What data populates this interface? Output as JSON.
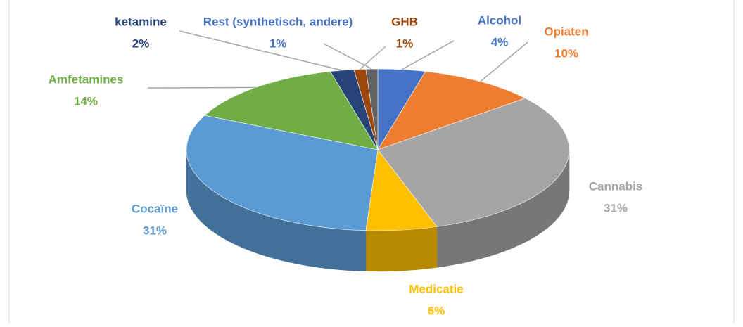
{
  "chart_data": {
    "type": "pie",
    "categories": [
      "Alcohol",
      "Opiaten",
      "Cannabis",
      "Medicatie",
      "Cocaïne",
      "Amfetamines",
      "ketamine",
      "GHB",
      "Rest (synthetisch, andere)"
    ],
    "values": [
      4,
      10,
      31,
      6,
      31,
      14,
      2,
      1,
      1
    ],
    "value_labels": [
      "4%",
      "10%",
      "31%",
      "6%",
      "31%",
      "14%",
      "2%",
      "1%",
      "1%"
    ],
    "colors": [
      "#4472c4",
      "#ed7d31",
      "#a5a5a5",
      "#ffc000",
      "#5b9bd5",
      "#70ad47",
      "#264478",
      "#9e480e",
      "#636363"
    ],
    "label_colors": [
      "#4472c4",
      "#ed7d31",
      "#a5a5a5",
      "#ffc000",
      "#5b9bd5",
      "#70ad47",
      "#264478",
      "#9e480e",
      "#4472c4"
    ]
  }
}
